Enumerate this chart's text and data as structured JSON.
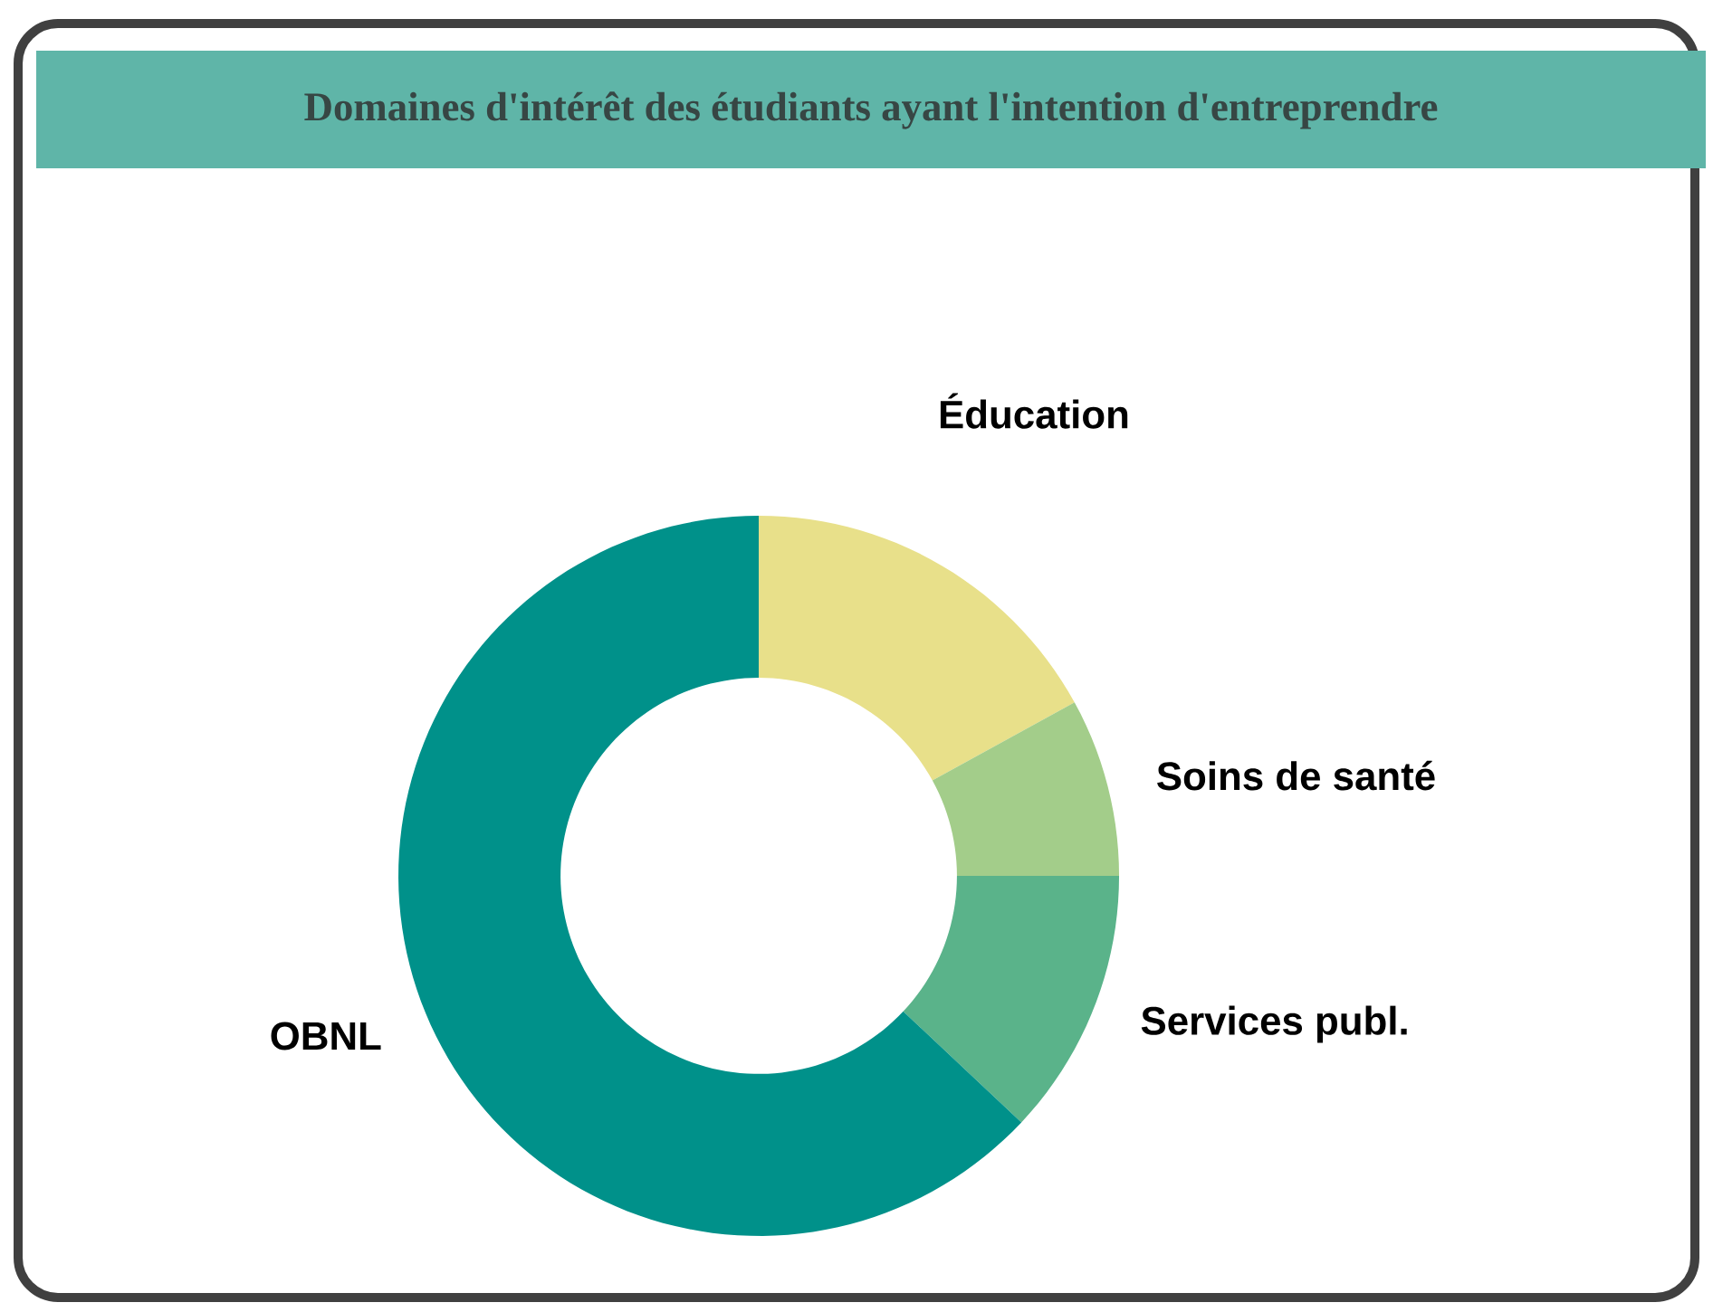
{
  "chart_data": {
    "type": "donut",
    "title": "Domaines d'intérêt des étudiants ayant l'intention d'entreprendre",
    "categories": [
      "Éducation",
      "Soins de santé",
      "Services publ.",
      "OBNL"
    ],
    "values": [
      17,
      8,
      12,
      63
    ],
    "colors": [
      "#e8e08a",
      "#a3cd8a",
      "#5ab38a",
      "#00918a"
    ]
  }
}
